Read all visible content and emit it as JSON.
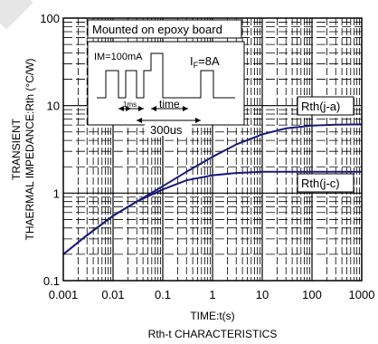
{
  "chart_data": {
    "type": "line",
    "title": "Rth-t CHARACTERISTICS",
    "xlabel": "TIME:t(s)",
    "ylabel_lines": [
      "TRANSIENT",
      "THAERMAL IMPEDANCE:Rth (°C/W)"
    ],
    "x_scale": "log",
    "y_scale": "log",
    "xlim": [
      0.001,
      1000
    ],
    "ylim": [
      0.1,
      100
    ],
    "x_ticks": [
      "0.001",
      "0.01",
      "0.1",
      "1",
      "10",
      "100",
      "1000"
    ],
    "y_ticks": [
      "0.1",
      "1",
      "10",
      "100"
    ],
    "grid": "log minor + major",
    "series": [
      {
        "name": "Rth(j-a)",
        "color": "#1a1a7a",
        "x": [
          0.001,
          0.003,
          0.01,
          0.03,
          0.1,
          0.3,
          1,
          3,
          10,
          30,
          100,
          300,
          1000
        ],
        "y": [
          0.2,
          0.33,
          0.55,
          0.8,
          1.2,
          1.75,
          2.6,
          3.6,
          4.7,
          5.5,
          5.9,
          6.05,
          6.1
        ]
      },
      {
        "name": "Rth(j-c)",
        "color": "#1a1a7a",
        "x": [
          0.001,
          0.003,
          0.01,
          0.03,
          0.1,
          0.3,
          1,
          3,
          10,
          30,
          100,
          300,
          1000
        ],
        "y": [
          0.2,
          0.33,
          0.55,
          0.8,
          1.1,
          1.4,
          1.6,
          1.7,
          1.75,
          1.75,
          1.75,
          1.75,
          1.75
        ]
      }
    ],
    "annotations": {
      "condition": "Mounted on epoxy board",
      "im": "IM=100mA",
      "if_main": "I",
      "if_sub": "F",
      "if_value": "=8A",
      "pulse_width": "1ms",
      "time": "time",
      "period": "300us"
    }
  }
}
